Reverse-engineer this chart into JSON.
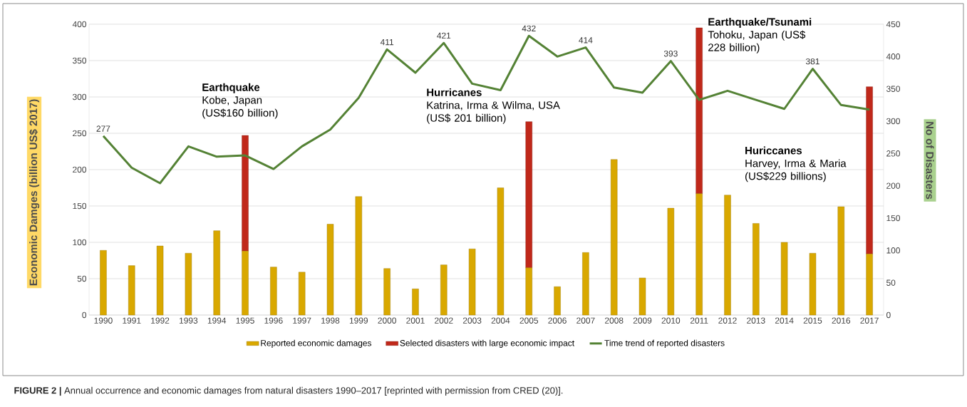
{
  "chart_data": {
    "type": "bar",
    "stacked": true,
    "categories": [
      "1990",
      "1991",
      "1992",
      "1993",
      "1994",
      "1995",
      "1996",
      "1997",
      "1998",
      "1999",
      "2000",
      "2001",
      "2002",
      "2003",
      "2004",
      "2005",
      "2006",
      "2007",
      "2008",
      "2009",
      "2010",
      "2011",
      "2012",
      "2013",
      "2014",
      "2015",
      "2016",
      "2017"
    ],
    "series": [
      {
        "name": "Reported economic damages",
        "color": "#d9a800",
        "values": [
          89,
          68,
          95,
          85,
          116,
          88,
          66,
          59,
          125,
          163,
          64,
          36,
          69,
          91,
          175,
          65,
          39,
          86,
          214,
          51,
          147,
          167,
          165,
          126,
          100,
          85,
          149,
          84
        ]
      },
      {
        "name": "Selected disasters with large economic impact",
        "color": "#c0281a",
        "values": [
          null,
          null,
          null,
          null,
          null,
          159,
          null,
          null,
          null,
          null,
          null,
          null,
          null,
          null,
          null,
          201,
          null,
          null,
          null,
          null,
          null,
          228,
          null,
          null,
          null,
          null,
          null,
          230
        ]
      },
      {
        "name": "Time trend of reported disasters",
        "type": "line",
        "axis": "y2",
        "color": "#548235",
        "values": [
          277,
          228,
          204,
          261,
          245,
          247,
          226,
          261,
          287,
          336,
          411,
          375,
          421,
          358,
          348,
          432,
          400,
          414,
          352,
          344,
          393,
          333,
          347,
          333,
          319,
          381,
          325,
          318
        ],
        "value_labels": [
          "277",
          null,
          null,
          null,
          null,
          null,
          null,
          null,
          null,
          null,
          "411",
          null,
          "421",
          null,
          null,
          "432",
          null,
          "414",
          null,
          null,
          "393",
          null,
          null,
          null,
          null,
          "381",
          null,
          null
        ]
      }
    ],
    "ylabel": "Economic Damges (billion US$ 2017)",
    "y2label": "No of Disasters",
    "ylim": [
      0,
      400
    ],
    "yticks": [
      0,
      50,
      100,
      150,
      200,
      250,
      300,
      350,
      400
    ],
    "y2lim": [
      0,
      450
    ],
    "y2ticks": [
      0,
      50,
      100,
      150,
      200,
      250,
      300,
      350,
      400,
      450
    ],
    "grid": "y",
    "legend": "bottom",
    "marker": "none",
    "annotations": [
      "**Earthquake** Kobe, Japan (US$160 billion)",
      "**Hurricanes** Katrina, Irma & Wilma, USA (US$ 201 billion)",
      "**Earthquake/Tsunami** Tohoku, Japan (US$ 228 billion)",
      "**Huriccanes** Harvey, Irma & Maria (US$229 billions)",
      "**FIGURE 2 |** Annual occurrence and economic damages from natural disasters 1990–2017 [reprinted with permission from CRED (20)]."
    ]
  }
}
